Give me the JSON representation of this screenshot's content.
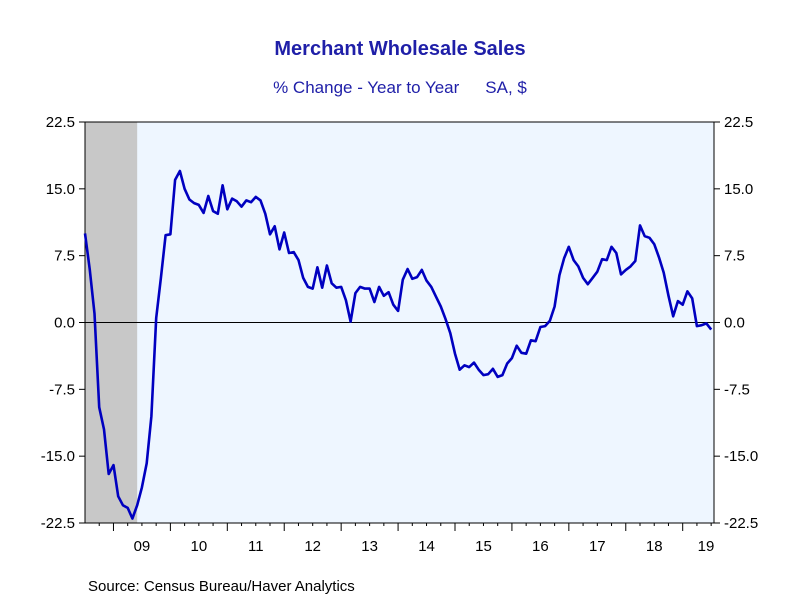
{
  "chart_data": {
    "type": "line",
    "title": "Merchant Wholesale Sales",
    "subtitle_left": "% Change - Year to Year",
    "subtitle_right": "SA, $",
    "source": "Source:  Census Bureau/Haver Analytics",
    "ylim": [
      -22.5,
      22.5
    ],
    "yticks": [
      "22.5",
      "15.0",
      "7.5",
      "0.0",
      "-7.5",
      "-15.0",
      "-22.5"
    ],
    "ytick_values": [
      22.5,
      15.0,
      7.5,
      0.0,
      -7.5,
      -15.0,
      -22.5
    ],
    "xlabels": [
      "09",
      "10",
      "11",
      "12",
      "13",
      "14",
      "15",
      "16",
      "17",
      "18",
      "19"
    ],
    "x_start": "2008-07",
    "recession": {
      "start": "2008-07",
      "end": "2009-06"
    },
    "colors": {
      "line": "#0000c0",
      "plot_bg": "#eef6ff",
      "recession": "#c8c8c8",
      "text": "#1f1fa8"
    },
    "series": [
      {
        "values": [
          10.0,
          6.0,
          1.0,
          -9.5,
          -12.0,
          -17.0,
          -16.0,
          -19.5,
          -20.5,
          -20.8,
          -22.0,
          -20.5,
          -18.5,
          -15.8,
          -10.5,
          0.5,
          5.0,
          9.8,
          9.9,
          16.0,
          17.0,
          15.0,
          13.8,
          13.4,
          13.2,
          12.3,
          14.2,
          12.5,
          12.2,
          15.4,
          12.7,
          13.9,
          13.6,
          13.0,
          13.7,
          13.5,
          14.1,
          13.7,
          12.2,
          9.9,
          10.8,
          8.2,
          10.1,
          7.8,
          7.9,
          7.0,
          5.0,
          4.0,
          3.8,
          6.2,
          3.9,
          6.4,
          4.4,
          3.9,
          4.0,
          2.5,
          0.1,
          3.3,
          4.0,
          3.8,
          3.8,
          2.3,
          4.0,
          3.0,
          3.4,
          2.0,
          1.3,
          4.8,
          6.0,
          4.9,
          5.1,
          5.9,
          4.7,
          4.0,
          2.9,
          1.8,
          0.4,
          -1.2,
          -3.5,
          -5.3,
          -4.8,
          -5.0,
          -4.5,
          -5.3,
          -5.9,
          -5.8,
          -5.2,
          -6.1,
          -5.9,
          -4.6,
          -4.0,
          -2.6,
          -3.4,
          -3.5,
          -2.0,
          -2.1,
          -0.5,
          -0.4,
          0.2,
          1.8,
          5.3,
          7.2,
          8.5,
          7.0,
          6.3,
          5.0,
          4.3,
          5.0,
          5.7,
          7.1,
          7.0,
          8.5,
          7.8,
          5.4,
          5.9,
          6.3,
          6.9,
          10.9,
          9.7,
          9.5,
          8.8,
          7.3,
          5.6,
          3.0,
          0.7,
          2.4,
          2.0,
          3.5,
          2.7,
          -0.4,
          -0.3,
          -0.1,
          -0.8
        ]
      }
    ]
  }
}
